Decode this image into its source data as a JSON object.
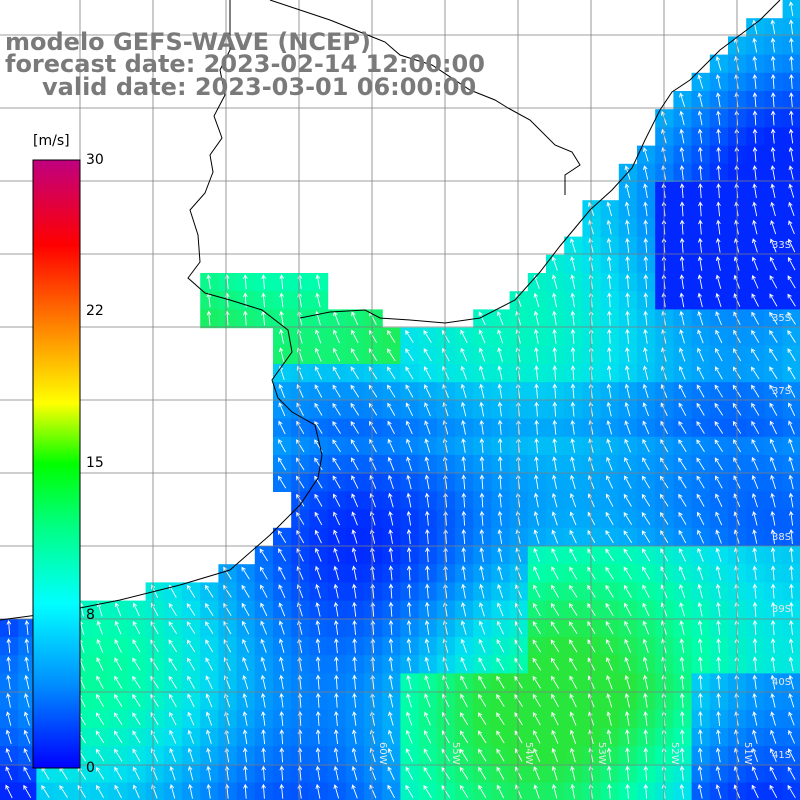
{
  "title": {
    "line1": "modelo GEFS-WAVE (NCEP)",
    "line2": "forecast date: 2023-02-14 12:00:00",
    "line3": "valid date: 2023-03-01 06:00:00"
  },
  "colorbar": {
    "unit": "[m/s]",
    "min": 0,
    "max": 30,
    "ticks": [
      "0",
      "8",
      "15",
      "22",
      "30"
    ],
    "colors": [
      "#0000ff",
      "#0090ff",
      "#00ffff",
      "#00ff80",
      "#00ff00",
      "#ffff00",
      "#ff8000",
      "#ff0000",
      "#c00080"
    ]
  },
  "map": {
    "lat_labels": [
      "33S",
      "35S",
      "37S",
      "38S",
      "39S",
      "40S",
      "41S"
    ],
    "lon_labels": [
      "60W",
      "55W",
      "54W",
      "53W",
      "52W",
      "51W"
    ],
    "land_color": "#ffffff",
    "grid_color": "#7f7f7f",
    "coast_color": "#000000",
    "arrow_color": "#ffffff",
    "wind_direction": "from south-southeast toward north-northwest"
  }
}
